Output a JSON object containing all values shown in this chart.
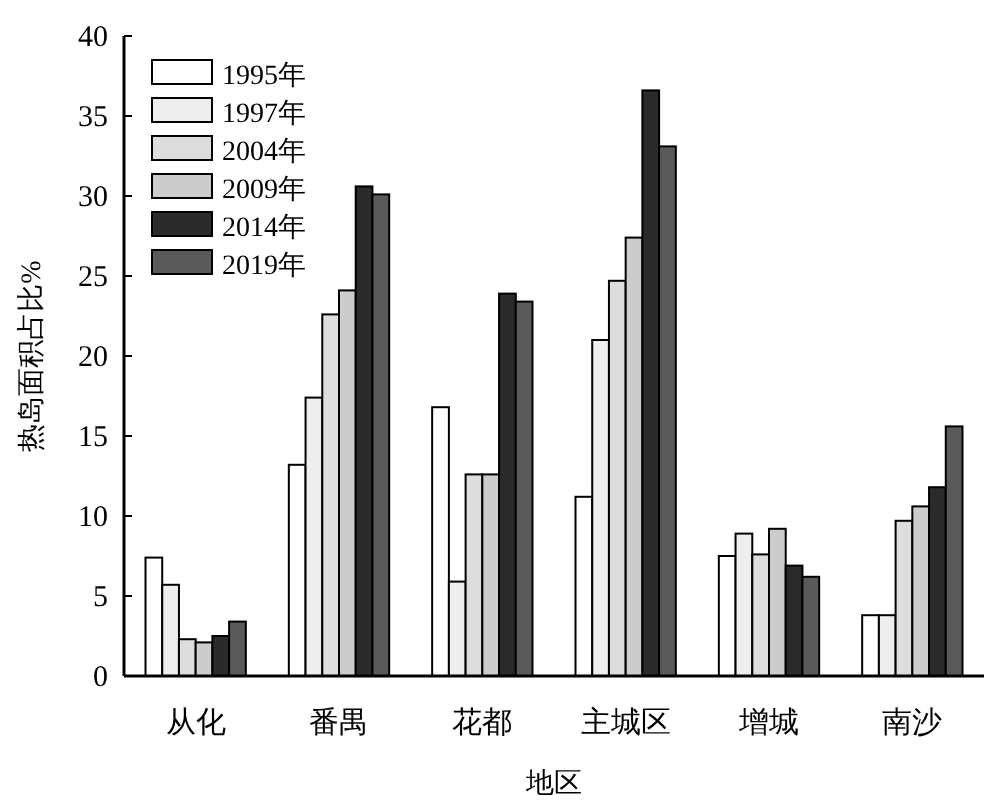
{
  "chart_data": {
    "type": "bar",
    "xlabel": "地区",
    "ylabel": "热岛面积占比%",
    "categories": [
      "从化",
      "番禺",
      "花都",
      "主城区",
      "增城",
      "南沙"
    ],
    "series": [
      {
        "name": "1995年",
        "color": "#ffffff",
        "values": [
          7.4,
          13.2,
          16.8,
          11.2,
          7.5,
          3.8
        ]
      },
      {
        "name": "1997年",
        "color": "#eeeeee",
        "values": [
          5.7,
          17.4,
          5.9,
          21.0,
          8.9,
          3.8
        ]
      },
      {
        "name": "2004年",
        "color": "#dddddd",
        "values": [
          2.3,
          22.6,
          12.6,
          24.7,
          7.6,
          9.7
        ]
      },
      {
        "name": "2009年",
        "color": "#cccccc",
        "values": [
          2.1,
          24.1,
          12.6,
          27.4,
          9.2,
          10.6
        ]
      },
      {
        "name": "2014年",
        "color": "#2b2b2b",
        "values": [
          2.5,
          30.6,
          23.9,
          36.6,
          6.9,
          11.8
        ]
      },
      {
        "name": "2019年",
        "color": "#5a5a5a",
        "values": [
          3.4,
          30.1,
          23.4,
          33.1,
          6.2,
          15.6
        ]
      }
    ],
    "ylim": [
      0,
      40
    ],
    "yticks": [
      0,
      5,
      10,
      15,
      20,
      25,
      30,
      35,
      40
    ],
    "legend": "top left",
    "grid": false
  }
}
